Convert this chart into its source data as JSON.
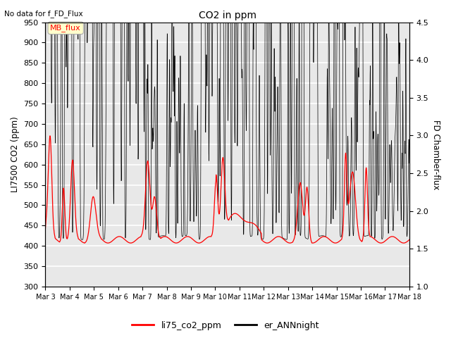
{
  "title": "CO2 in ppm",
  "title_note": "No data for f_FD_Flux",
  "ylabel_left": "LI7500 CO2 (ppm)",
  "ylabel_right": "FD Chamber-flux",
  "ylim_left": [
    300,
    950
  ],
  "ylim_right": [
    1.0,
    4.5
  ],
  "yticks_left": [
    300,
    350,
    400,
    450,
    500,
    550,
    600,
    650,
    700,
    750,
    800,
    850,
    900,
    950
  ],
  "yticks_right": [
    1.0,
    1.5,
    2.0,
    2.5,
    3.0,
    3.5,
    4.0,
    4.5
  ],
  "xticklabels": [
    "Mar 3",
    "Mar 4",
    "Mar 5",
    "Mar 6",
    "Mar 7",
    "Mar 8",
    "Mar 9",
    "Mar 10",
    "Mar 11",
    "Mar 12",
    "Mar 13",
    "Mar 14",
    "Mar 15",
    "Mar 16",
    "Mar 17",
    "Mar 18"
  ],
  "legend_labels": [
    "li75_co2_ppm",
    "er_ANNnight"
  ],
  "legend_colors": [
    "red",
    "black"
  ],
  "annotation_text": "MB_flux",
  "annotation_color": "red",
  "annotation_bg": "#ffffcc",
  "line1_color": "red",
  "line2_color": "black",
  "background_color": "#e8e8e8",
  "grid_color": "white"
}
